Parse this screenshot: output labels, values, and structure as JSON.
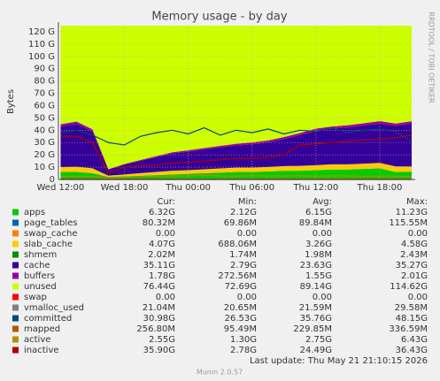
{
  "chart_data": {
    "type": "area",
    "title": "Memory usage - by day",
    "y_label": "Bytes",
    "side_text": "RRDTOOL / TOBI OETIKER",
    "x": [
      0,
      1.5,
      3,
      4.5,
      6,
      7.5,
      9,
      10.5,
      12,
      13.5,
      15,
      16.5,
      18,
      19.5,
      21,
      22.5,
      24,
      25.5,
      27,
      28.5,
      30,
      31.5,
      33
    ],
    "xlim": [
      -0.2,
      33
    ],
    "xticks": [
      {
        "value": 0,
        "label": "Wed 12:00"
      },
      {
        "value": 6,
        "label": "Wed 18:00"
      },
      {
        "value": 12,
        "label": "Thu 00:00"
      },
      {
        "value": 18,
        "label": "Thu 06:00"
      },
      {
        "value": 24,
        "label": "Thu 12:00"
      },
      {
        "value": 30,
        "label": "Thu 18:00"
      }
    ],
    "ylim": [
      0,
      125
    ],
    "yticks": [
      0,
      {
        "value": 10,
        "label": "10 G"
      },
      {
        "value": 20,
        "label": "20 G"
      },
      {
        "value": 30,
        "label": "30 G"
      },
      {
        "value": 40,
        "label": "40 G"
      },
      {
        "value": 50,
        "label": "50 G"
      },
      {
        "value": 60,
        "label": "60 G"
      },
      {
        "value": 70,
        "label": "70 G"
      },
      {
        "value": 80,
        "label": "80 G"
      },
      {
        "value": 90,
        "label": "90 G"
      },
      {
        "value": 100,
        "label": "100 G"
      },
      {
        "value": 110,
        "label": "110 G"
      },
      {
        "value": 120,
        "label": "120 G"
      }
    ],
    "grid": true,
    "stat_headers": [
      "Cur:",
      "Min:",
      "Avg:",
      "Max:"
    ],
    "series": [
      {
        "name": "apps",
        "kind": "area",
        "color": "#00cc00",
        "cur": "6.32G",
        "min": "2.12G",
        "avg": "6.15G",
        "max": "11.23G",
        "values": [
          6,
          6,
          5,
          2,
          2.5,
          3,
          3.5,
          4,
          4.5,
          5,
          5.5,
          6,
          6,
          6.5,
          7,
          7,
          7.5,
          8,
          8,
          8.5,
          9,
          6,
          6.3
        ]
      },
      {
        "name": "page_tables",
        "kind": "area",
        "color": "#0066b3",
        "cur": "80.32M",
        "min": "69.86M",
        "avg": "89.84M",
        "max": "115.55M",
        "values": [
          0.08,
          0.08,
          0.08,
          0.08,
          0.08,
          0.08,
          0.08,
          0.08,
          0.08,
          0.08,
          0.08,
          0.08,
          0.08,
          0.08,
          0.08,
          0.08,
          0.08,
          0.08,
          0.08,
          0.08,
          0.08,
          0.08,
          0.08
        ]
      },
      {
        "name": "swap_cache",
        "kind": "area",
        "color": "#ff8000",
        "cur": "0.00",
        "min": "0.00",
        "avg": "0.00",
        "max": "0.00",
        "values": [
          0,
          0,
          0,
          0,
          0,
          0,
          0,
          0,
          0,
          0,
          0,
          0,
          0,
          0,
          0,
          0,
          0,
          0,
          0,
          0,
          0,
          0,
          0
        ]
      },
      {
        "name": "slab_cache",
        "kind": "area",
        "color": "#ffcc00",
        "cur": "4.07G",
        "min": "688.06M",
        "avg": "3.26G",
        "max": "4.58G",
        "values": [
          4,
          4.2,
          4,
          1,
          1.5,
          2,
          2.5,
          3,
          3,
          3.2,
          3.4,
          3.5,
          3.5,
          3.6,
          3.8,
          4,
          4,
          4.2,
          4.2,
          4.3,
          4.4,
          4.5,
          4.1
        ]
      },
      {
        "name": "shmem",
        "kind": "area",
        "color": "#008f00",
        "cur": "2.02M",
        "min": "1.74M",
        "avg": "1.98M",
        "max": "2.43M",
        "values": [
          0.002,
          0.002,
          0.002,
          0.002,
          0.002,
          0.002,
          0.002,
          0.002,
          0.002,
          0.002,
          0.002,
          0.002,
          0.002,
          0.002,
          0.002,
          0.002,
          0.002,
          0.002,
          0.002,
          0.002,
          0.002,
          0.002,
          0.002
        ]
      },
      {
        "name": "cache",
        "kind": "area",
        "color": "#330099",
        "cur": "35.11G",
        "min": "2.79G",
        "avg": "23.63G",
        "max": "35.27G",
        "values": [
          33,
          35,
          30,
          5,
          8,
          10,
          12,
          14,
          15,
          16,
          17,
          18,
          19,
          20,
          22,
          25,
          28,
          29,
          30,
          31,
          32,
          33,
          35
        ]
      },
      {
        "name": "buffers",
        "kind": "area",
        "color": "#990099",
        "cur": "1.78G",
        "min": "272.56M",
        "avg": "1.55G",
        "max": "2.01G",
        "values": [
          1.8,
          1.8,
          1.7,
          0.3,
          0.5,
          0.7,
          0.9,
          1,
          1.1,
          1.2,
          1.3,
          1.4,
          1.5,
          1.5,
          1.6,
          1.6,
          1.7,
          1.7,
          1.8,
          1.8,
          1.9,
          1.9,
          1.8
        ]
      },
      {
        "name": "unused",
        "kind": "area",
        "color": "#ccff00",
        "cur": "76.44G",
        "min": "72.69G",
        "avg": "89.14G",
        "max": "114.62G",
        "values": [
          80.12,
          77.92,
          84.22,
          116.62,
          112.42,
          109.22,
          106.02,
          102.92,
          101.32,
          99.52,
          97.72,
          96.02,
          94.92,
          93.32,
          90.52,
          87.32,
          83.72,
          82.02,
          80.92,
          79.32,
          77.62,
          79.52,
          77.72
        ]
      },
      {
        "name": "swap",
        "kind": "line",
        "color": "#ff0000",
        "cur": "0.00",
        "min": "0.00",
        "avg": "0.00",
        "max": "0.00",
        "values": [
          0,
          0,
          0,
          0,
          0,
          0,
          0,
          0,
          0,
          0,
          0,
          0,
          0,
          0,
          0,
          0,
          0,
          0,
          0,
          0,
          0,
          0,
          0
        ]
      },
      {
        "name": "vmalloc_used",
        "kind": "line",
        "color": "#808080",
        "cur": "21.04M",
        "min": "20.65M",
        "avg": "21.59M",
        "max": "29.58M",
        "values": [
          0.02,
          0.02,
          0.02,
          0.02,
          0.02,
          0.02,
          0.02,
          0.02,
          0.02,
          0.02,
          0.02,
          0.02,
          0.02,
          0.02,
          0.02,
          0.02,
          0.02,
          0.02,
          0.02,
          0.02,
          0.02,
          0.02,
          0.02
        ]
      },
      {
        "name": "committed",
        "kind": "line",
        "color": "#00487d",
        "cur": "30.98G",
        "min": "26.53G",
        "avg": "35.76G",
        "max": "48.15G",
        "values": [
          38,
          40,
          36,
          30,
          28,
          35,
          38,
          40,
          37,
          42,
          36,
          40,
          38,
          41,
          37,
          40,
          39,
          42,
          38,
          40,
          41,
          39,
          31
        ]
      },
      {
        "name": "mapped",
        "kind": "line",
        "color": "#b35a00",
        "cur": "256.80M",
        "min": "95.49M",
        "avg": "229.85M",
        "max": "336.59M",
        "values": [
          0.25,
          0.25,
          0.25,
          0.1,
          0.15,
          0.2,
          0.2,
          0.22,
          0.22,
          0.23,
          0.23,
          0.24,
          0.24,
          0.24,
          0.25,
          0.25,
          0.25,
          0.26,
          0.26,
          0.26,
          0.26,
          0.26,
          0.26
        ]
      },
      {
        "name": "active",
        "kind": "line",
        "color": "#b38f00",
        "cur": "2.55G",
        "min": "1.30G",
        "avg": "2.75G",
        "max": "6.43G",
        "values": [
          2.5,
          2.6,
          2.4,
          1.3,
          1.8,
          2.2,
          2.6,
          2.8,
          3,
          3.5,
          2.9,
          2.7,
          3.1,
          2.8,
          2.9,
          3,
          2.7,
          2.9,
          2.8,
          2.6,
          2.7,
          2.6,
          2.55
        ]
      },
      {
        "name": "inactive",
        "kind": "line",
        "color": "#b30000",
        "cur": "35.90G",
        "min": "2.78G",
        "avg": "24.49G",
        "max": "36.43G",
        "values": [
          35,
          35,
          30,
          5,
          10,
          11,
          12,
          13,
          14,
          15,
          16,
          17,
          17,
          18,
          20,
          28,
          29,
          30,
          31,
          32,
          33,
          34,
          35.9
        ]
      }
    ],
    "last_update": "Last update: Thu May 21 21:10:15 2026",
    "footer": "Munin 2.0.57"
  }
}
